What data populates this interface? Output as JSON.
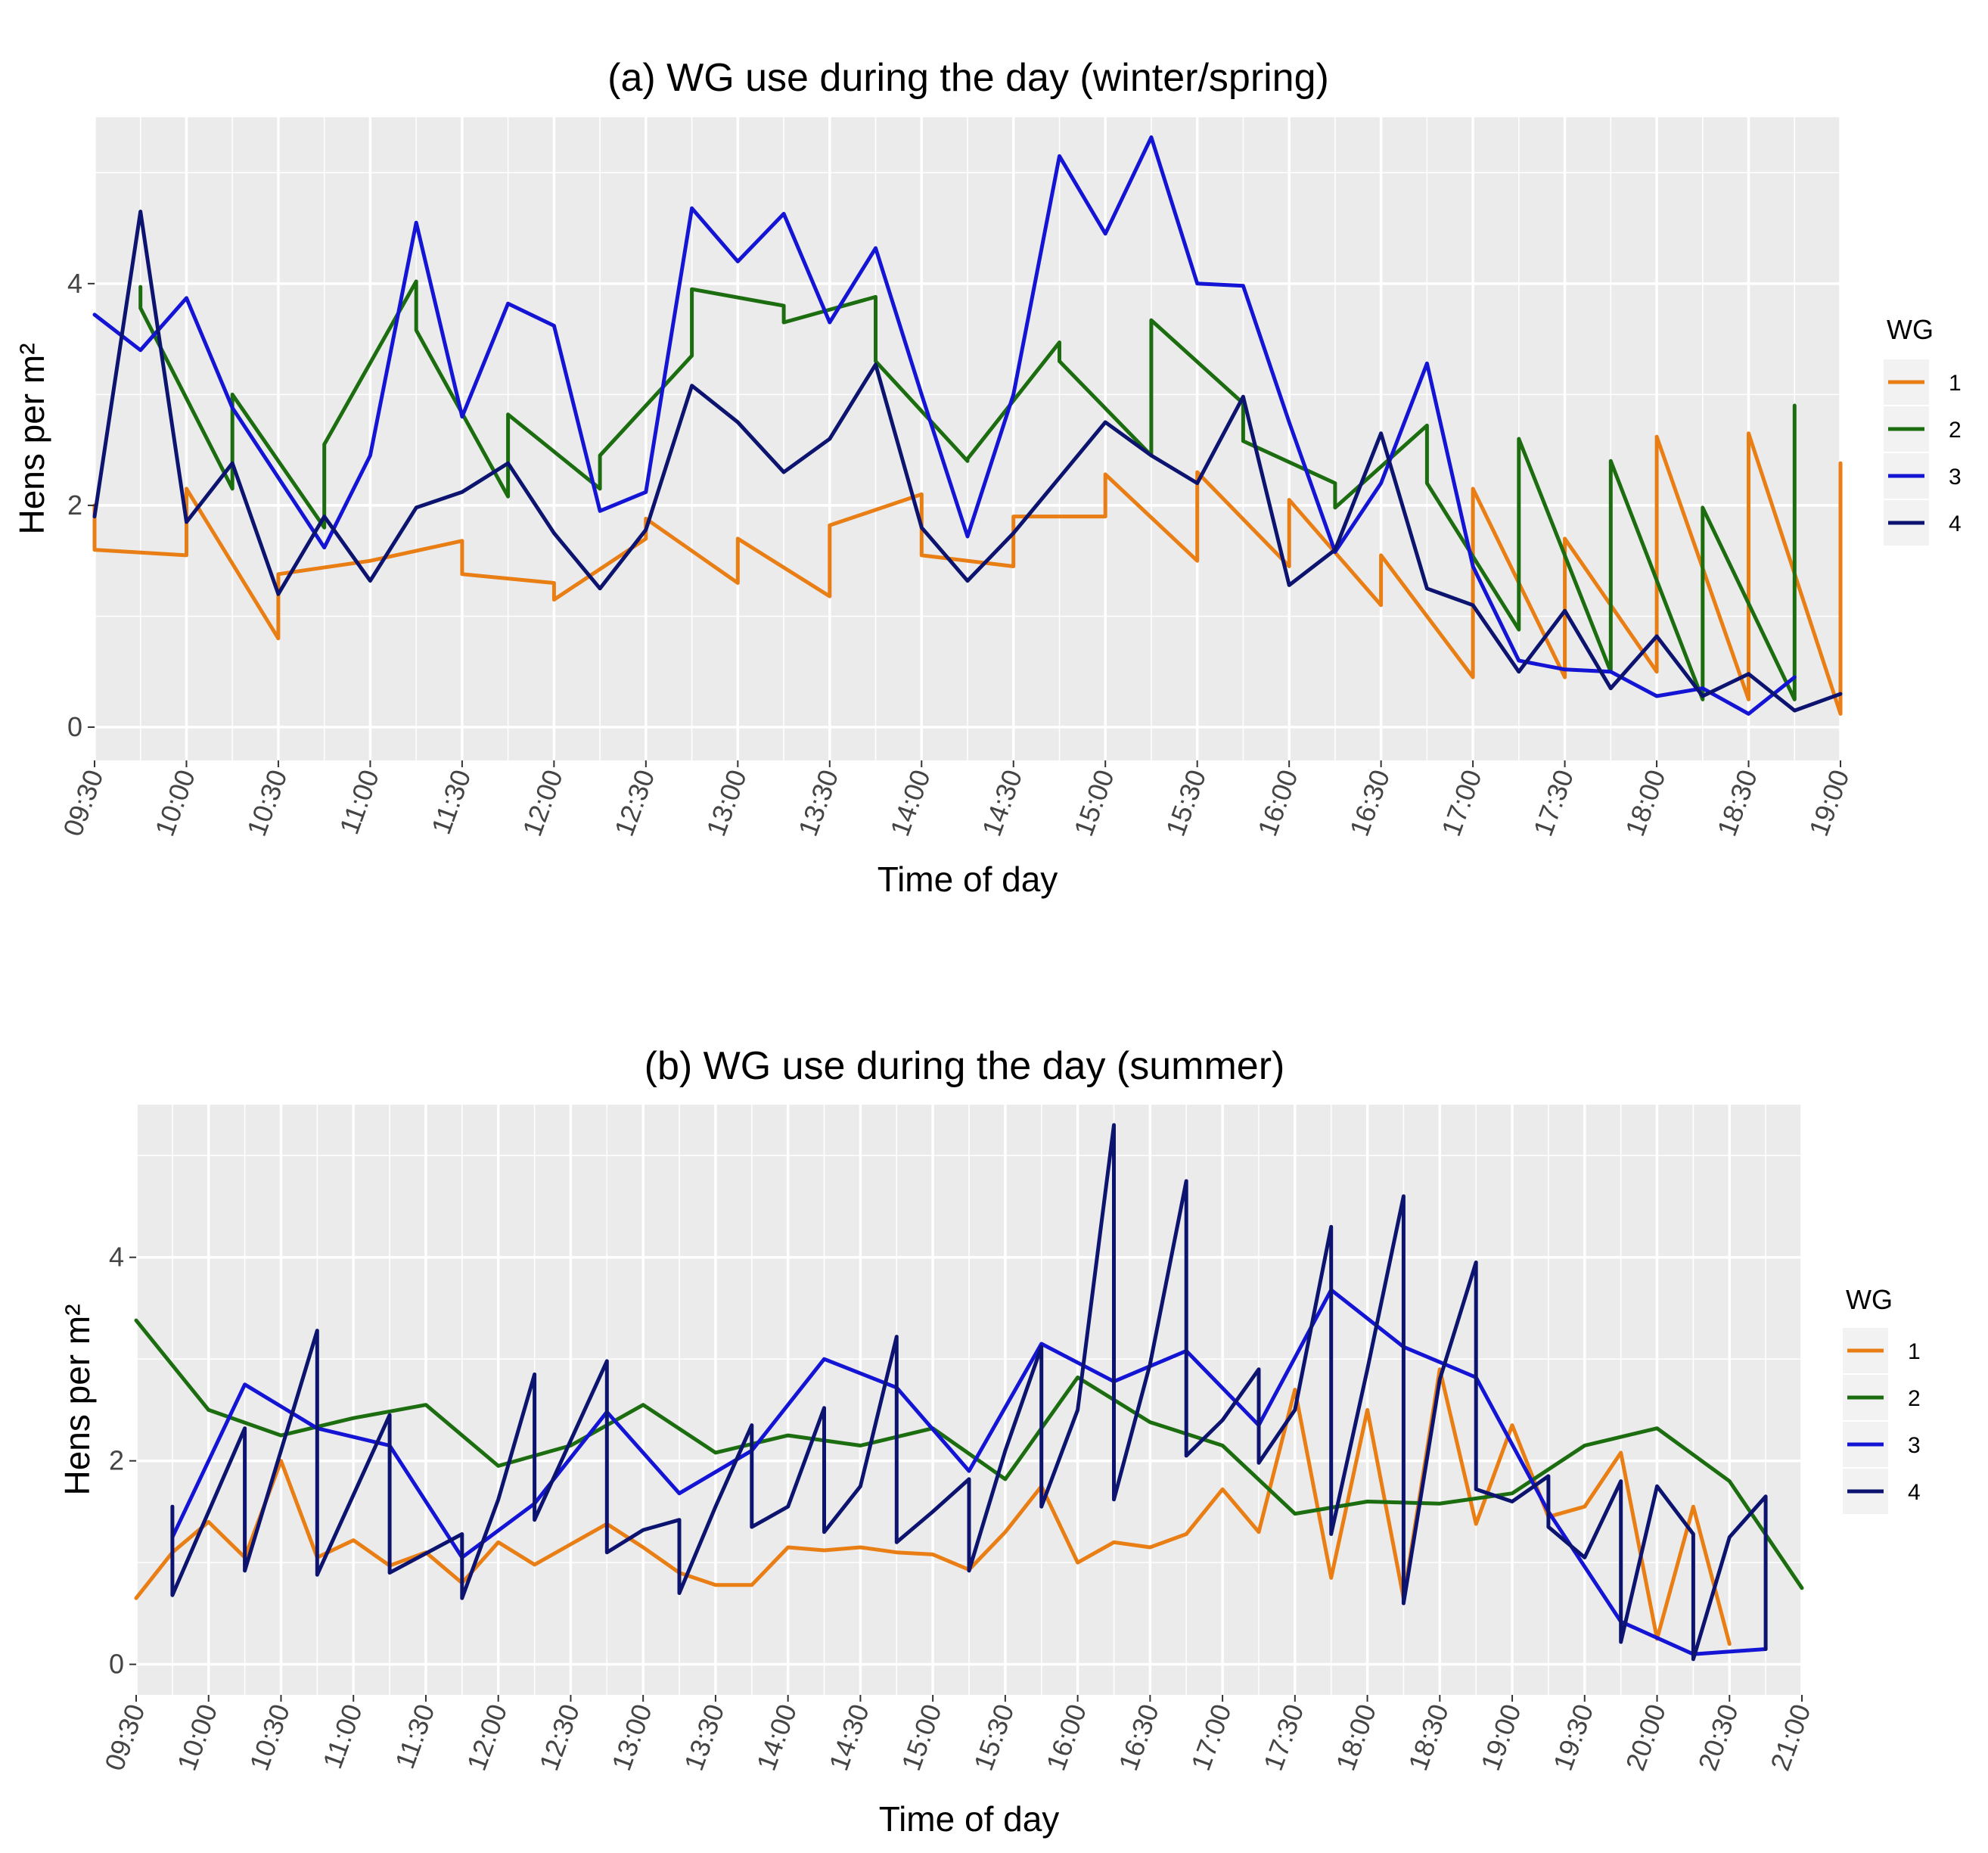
{
  "chart_data": [
    {
      "type": "line",
      "title": "(a) WG use during the day (winter/spring)",
      "xlabel": "Time of day",
      "ylabel": "Hens per m²",
      "ylim": [
        -0.3,
        5.5
      ],
      "yticks": [
        0,
        2,
        4
      ],
      "xticks": [
        "09:30",
        "10:00",
        "10:30",
        "11:00",
        "11:30",
        "12:00",
        "12:30",
        "13:00",
        "13:30",
        "14:00",
        "14:30",
        "15:00",
        "15:30",
        "16:00",
        "16:30",
        "17:00",
        "17:30",
        "18:00",
        "18:30",
        "19:00"
      ],
      "xlim_minutes": [
        570,
        1140
      ],
      "grid": true,
      "legend": {
        "title": "WG",
        "position": "right",
        "entries": [
          "1",
          "2",
          "3",
          "4"
        ]
      },
      "series": [
        {
          "name": "1",
          "color": "#E87E14",
          "x": [
            570,
            570,
            600,
            600,
            630,
            630,
            660,
            690,
            690,
            720,
            720,
            750,
            750,
            780,
            780,
            810,
            810,
            840,
            840,
            870,
            870,
            900,
            900,
            930,
            930,
            960,
            960,
            990,
            990,
            1020,
            1020,
            1050,
            1050,
            1080,
            1080,
            1110,
            1110,
            1140,
            1140
          ],
          "y": [
            2.0,
            1.6,
            1.55,
            2.15,
            0.8,
            1.38,
            1.5,
            1.68,
            1.38,
            1.3,
            1.15,
            1.7,
            1.88,
            1.3,
            1.7,
            1.18,
            1.82,
            2.1,
            1.55,
            1.45,
            1.9,
            1.9,
            2.28,
            1.5,
            2.3,
            1.45,
            2.05,
            1.1,
            1.55,
            0.45,
            2.15,
            0.45,
            1.7,
            0.5,
            2.62,
            0.25,
            2.65,
            0.12,
            2.38
          ]
        },
        {
          "name": "2",
          "color": "#1C6D0F",
          "x": [
            585,
            585,
            615,
            615,
            645,
            645,
            675,
            675,
            705,
            705,
            735,
            735,
            765,
            765,
            795,
            795,
            825,
            825,
            855,
            855,
            885,
            885,
            915,
            915,
            945,
            945,
            975,
            975,
            1005,
            1005,
            1035,
            1035,
            1065,
            1065,
            1095,
            1095,
            1125,
            1125
          ],
          "y": [
            3.97,
            3.78,
            2.15,
            3.0,
            1.8,
            2.55,
            4.02,
            3.58,
            2.08,
            2.82,
            2.15,
            2.45,
            3.35,
            3.95,
            3.8,
            3.65,
            3.88,
            3.3,
            2.4,
            2.42,
            3.47,
            3.3,
            2.45,
            3.67,
            2.92,
            2.58,
            2.2,
            1.98,
            2.72,
            2.2,
            0.88,
            2.6,
            0.5,
            2.4,
            0.25,
            1.98,
            0.25,
            2.9
          ]
        },
        {
          "name": "3",
          "color": "#1414D4",
          "x": [
            570,
            585,
            600,
            615,
            645,
            660,
            675,
            690,
            705,
            720,
            735,
            750,
            765,
            780,
            795,
            810,
            825,
            840,
            855,
            870,
            885,
            900,
            915,
            930,
            945,
            960,
            975,
            990,
            1005,
            1020,
            1035,
            1050,
            1065,
            1080,
            1095,
            1110,
            1125
          ],
          "y": [
            3.72,
            3.4,
            3.87,
            2.88,
            1.62,
            2.45,
            4.55,
            2.8,
            3.82,
            3.62,
            1.95,
            2.12,
            4.68,
            4.2,
            4.63,
            3.65,
            4.32,
            3.0,
            1.72,
            3.0,
            5.15,
            4.45,
            5.32,
            4.0,
            3.98,
            2.75,
            1.58,
            2.2,
            3.28,
            1.45,
            0.6,
            0.52,
            0.5,
            0.28,
            0.35,
            0.12,
            0.45
          ]
        },
        {
          "name": "4",
          "color": "#0C1470",
          "x": [
            570,
            585,
            600,
            615,
            630,
            645,
            660,
            675,
            690,
            705,
            720,
            735,
            750,
            765,
            780,
            795,
            810,
            825,
            840,
            855,
            870,
            885,
            900,
            915,
            930,
            945,
            960,
            975,
            990,
            1005,
            1020,
            1035,
            1050,
            1065,
            1080,
            1095,
            1110,
            1125,
            1140
          ],
          "y": [
            1.9,
            4.65,
            1.85,
            2.38,
            1.2,
            1.9,
            1.32,
            1.98,
            2.12,
            2.38,
            1.75,
            1.25,
            1.78,
            3.08,
            2.75,
            2.3,
            2.6,
            3.27,
            1.8,
            1.32,
            1.75,
            2.25,
            2.75,
            2.45,
            2.2,
            2.98,
            1.28,
            1.6,
            2.65,
            1.25,
            1.1,
            0.5,
            1.05,
            0.35,
            0.82,
            0.28,
            0.48,
            0.15,
            0.3
          ]
        }
      ]
    },
    {
      "type": "line",
      "title": "(b) WG use during the day (summer)",
      "xlabel": "Time of day",
      "ylabel": "Hens per m²",
      "ylim": [
        -0.3,
        5.5
      ],
      "yticks": [
        0,
        2,
        4
      ],
      "xticks": [
        "09:30",
        "10:00",
        "10:30",
        "11:00",
        "11:30",
        "12:00",
        "12:30",
        "13:00",
        "13:30",
        "14:00",
        "14:30",
        "15:00",
        "15:30",
        "16:00",
        "16:30",
        "17:00",
        "17:30",
        "18:00",
        "18:30",
        "19:00",
        "19:30",
        "20:00",
        "20:30",
        "21:00"
      ],
      "xlim_minutes": [
        570,
        1260
      ],
      "grid": true,
      "legend": {
        "title": "WG",
        "position": "right",
        "entries": [
          "1",
          "2",
          "3",
          "4"
        ]
      },
      "series": [
        {
          "name": "1",
          "color": "#E87E14",
          "x": [
            570,
            585,
            600,
            615,
            630,
            645,
            660,
            675,
            690,
            705,
            720,
            735,
            750,
            765,
            780,
            795,
            810,
            825,
            840,
            855,
            870,
            885,
            900,
            915,
            930,
            945,
            960,
            975,
            990,
            1005,
            1020,
            1035,
            1050,
            1065,
            1080,
            1095,
            1110,
            1125,
            1140,
            1155,
            1170,
            1185,
            1200,
            1215,
            1230
          ],
          "y": [
            0.65,
            1.1,
            1.4,
            1.05,
            2.0,
            1.05,
            1.22,
            0.97,
            1.1,
            0.8,
            1.2,
            0.98,
            1.18,
            1.38,
            1.15,
            0.9,
            0.78,
            0.78,
            1.15,
            1.12,
            1.15,
            1.1,
            1.08,
            0.93,
            1.3,
            1.75,
            1.0,
            1.2,
            1.15,
            1.28,
            1.72,
            1.3,
            2.7,
            0.85,
            2.5,
            0.65,
            2.9,
            1.38,
            2.35,
            1.45,
            1.55,
            2.08,
            0.25,
            1.55,
            0.2
          ]
        },
        {
          "name": "2",
          "color": "#1C6D0F",
          "x": [
            570,
            600,
            630,
            660,
            690,
            720,
            750,
            780,
            810,
            840,
            870,
            900,
            930,
            960,
            990,
            1020,
            1050,
            1080,
            1110,
            1140,
            1170,
            1200,
            1230,
            1260
          ],
          "y": [
            3.38,
            2.5,
            2.25,
            2.42,
            2.55,
            1.95,
            2.15,
            2.55,
            2.08,
            2.25,
            2.15,
            2.32,
            1.82,
            2.82,
            2.38,
            2.15,
            1.48,
            1.6,
            1.58,
            1.68,
            2.15,
            2.32,
            1.8,
            0.75
          ]
        },
        {
          "name": "3",
          "color": "#1414D4",
          "x": [
            585,
            615,
            645,
            675,
            705,
            735,
            765,
            795,
            825,
            855,
            885,
            915,
            945,
            975,
            1005,
            1035,
            1065,
            1095,
            1125,
            1155,
            1185,
            1215,
            1245
          ],
          "y": [
            1.25,
            2.75,
            2.32,
            2.15,
            1.05,
            1.58,
            2.48,
            1.68,
            2.1,
            3.0,
            2.72,
            1.9,
            3.15,
            2.78,
            3.08,
            2.35,
            3.68,
            3.12,
            2.82,
            1.5,
            0.42,
            0.1,
            0.15
          ]
        },
        {
          "name": "4",
          "color": "#0C1470",
          "x": [
            585,
            585,
            615,
            615,
            645,
            645,
            675,
            675,
            705,
            705,
            720,
            720,
            735,
            735,
            765,
            765,
            780,
            780,
            795,
            795,
            810,
            810,
            825,
            825,
            840,
            840,
            855,
            855,
            870,
            870,
            885,
            885,
            900,
            900,
            915,
            915,
            930,
            930,
            945,
            945,
            960,
            960,
            975,
            975,
            990,
            990,
            1005,
            1005,
            1020,
            1020,
            1035,
            1035,
            1050,
            1050,
            1065,
            1065,
            1080,
            1080,
            1095,
            1095,
            1110,
            1110,
            1125,
            1125,
            1140,
            1140,
            1155,
            1155,
            1170,
            1170,
            1185,
            1185,
            1200,
            1200,
            1215,
            1215,
            1230,
            1230,
            1245,
            1245
          ],
          "y": [
            1.55,
            0.68,
            2.32,
            0.92,
            3.28,
            0.88,
            2.45,
            0.9,
            1.28,
            0.65,
            1.62,
            1.62,
            2.85,
            1.42,
            2.98,
            1.1,
            1.32,
            1.32,
            1.42,
            0.7,
            1.55,
            1.55,
            2.35,
            1.35,
            1.55,
            1.55,
            2.52,
            1.3,
            1.75,
            1.75,
            3.22,
            1.2,
            1.5,
            1.5,
            1.82,
            0.92,
            2.1,
            2.1,
            3.12,
            1.55,
            2.5,
            2.5,
            5.3,
            1.62,
            2.95,
            2.95,
            4.75,
            2.05,
            2.4,
            2.4,
            2.9,
            1.98,
            2.5,
            2.5,
            4.3,
            1.28,
            2.9,
            2.9,
            4.6,
            0.6,
            2.8,
            2.8,
            3.95,
            1.72,
            1.6,
            1.6,
            1.85,
            1.35,
            1.05,
            1.05,
            1.8,
            0.22,
            1.75,
            1.75,
            1.28,
            0.05,
            1.25,
            1.25,
            1.65,
            0.15
          ]
        }
      ]
    }
  ]
}
